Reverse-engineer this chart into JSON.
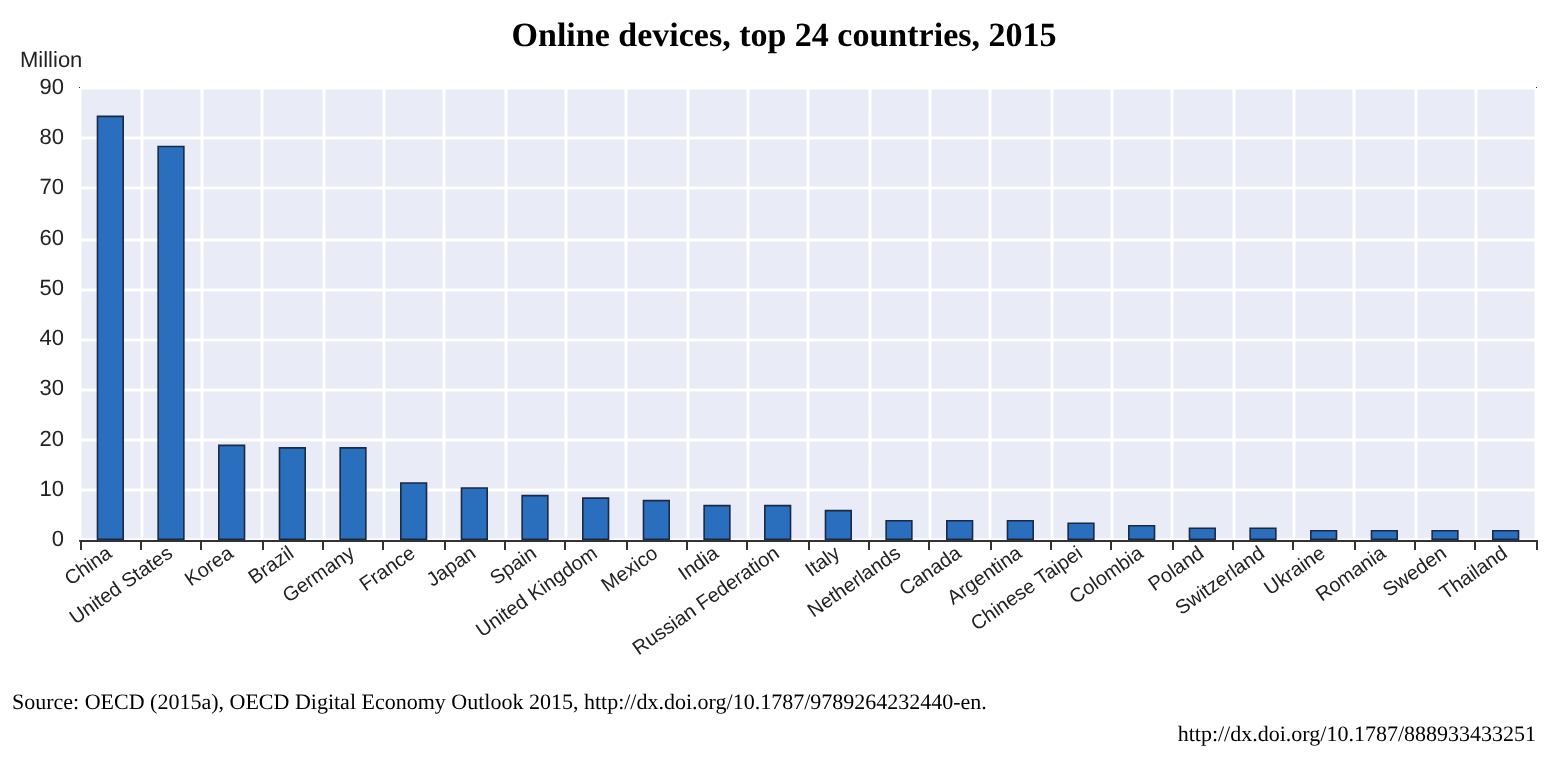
{
  "chart_data": {
    "type": "bar",
    "title": "Online devices, top 24 countries, 2015",
    "ylabel": "Million",
    "categories": [
      "China",
      "United States",
      "Korea",
      "Brazil",
      "Germany",
      "France",
      "Japan",
      "Spain",
      "United Kingdom",
      "Mexico",
      "India",
      "Russian Federation",
      "Italy",
      "Netherlands",
      "Canada",
      "Argentina",
      "Chinese Taipei",
      "Colombia",
      "Poland",
      "Switzerland",
      "Ukraine",
      "Romania",
      "Sweden",
      "Thailand"
    ],
    "values": [
      84.5,
      78.5,
      19,
      18.5,
      18.5,
      11.5,
      10.5,
      9,
      8.5,
      8,
      7,
      7,
      6,
      4,
      4,
      4,
      3.5,
      3,
      2.5,
      2.5,
      2,
      2,
      2,
      2
    ],
    "color": "#2a6ebe",
    "ylim": [
      0,
      90
    ],
    "yticks": [
      0,
      10,
      20,
      30,
      40,
      50,
      60,
      70,
      80,
      90
    ],
    "grid": true,
    "annotations": [
      "Source: OECD (2015a), OECD Digital Economy Outlook 2015, http://dx.doi.org/10.1787/9789264232440-en.",
      "http://dx.doi.org/10.1787/888933433251"
    ]
  }
}
